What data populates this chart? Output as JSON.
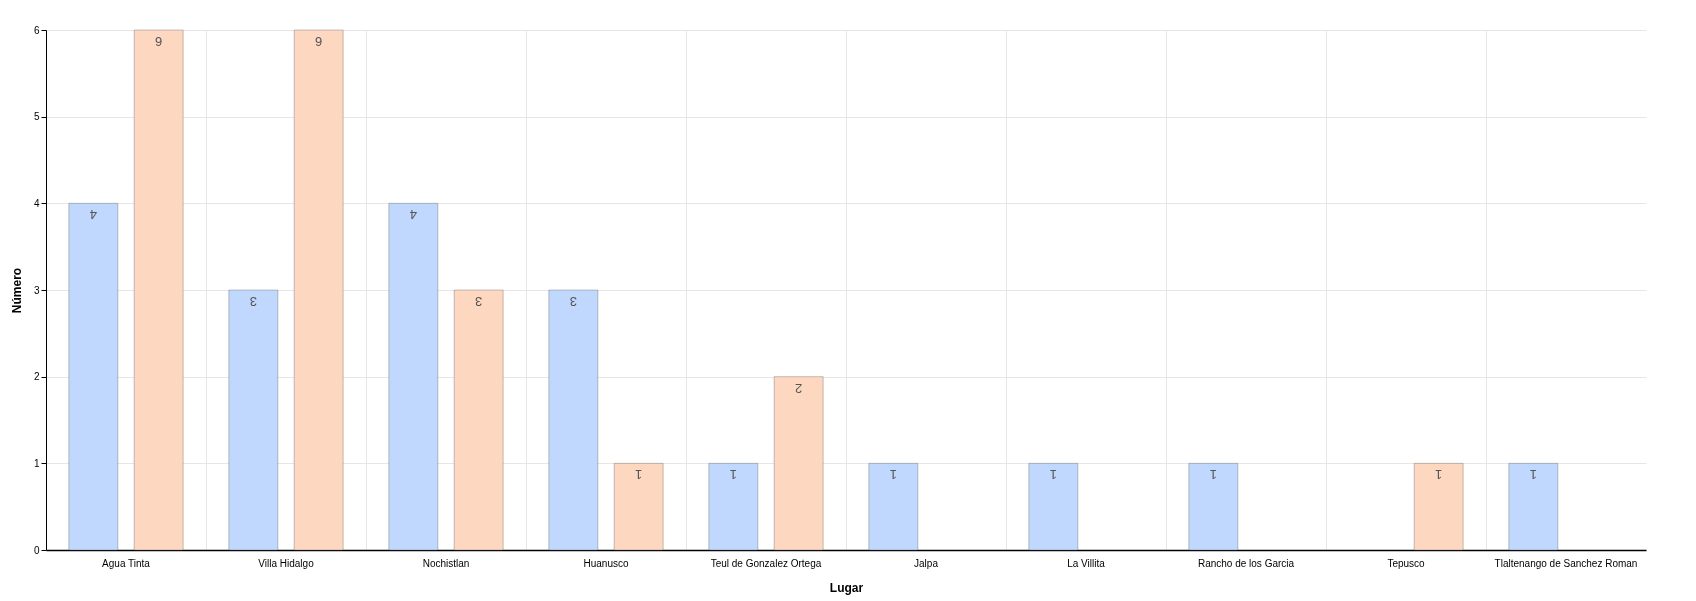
{
  "chart_data": {
    "type": "bar",
    "xlabel": "Lugar",
    "ylabel": "Número",
    "categories": [
      "Agua Tinta",
      "Villa Hidalgo",
      "Nochistlan",
      "Huanusco",
      "Teul de Gonzalez Ortega",
      "Jalpa",
      "La Villita",
      "Rancho de los Garcia",
      "Tepusco",
      "Tlaltenango de Sanchez Roman"
    ],
    "series": [
      {
        "color": "#c0d7fe",
        "values": [
          4,
          3,
          4,
          3,
          1,
          1,
          1,
          1,
          null,
          1
        ]
      },
      {
        "color": "#fed7c0",
        "values": [
          6,
          6,
          3,
          1,
          2,
          null,
          null,
          null,
          1,
          null
        ]
      }
    ],
    "ylim": [
      0,
      6
    ],
    "yticks": [
      0,
      1,
      2,
      3,
      4,
      5,
      6
    ],
    "grid": true,
    "data_labels": true,
    "legend": false
  }
}
